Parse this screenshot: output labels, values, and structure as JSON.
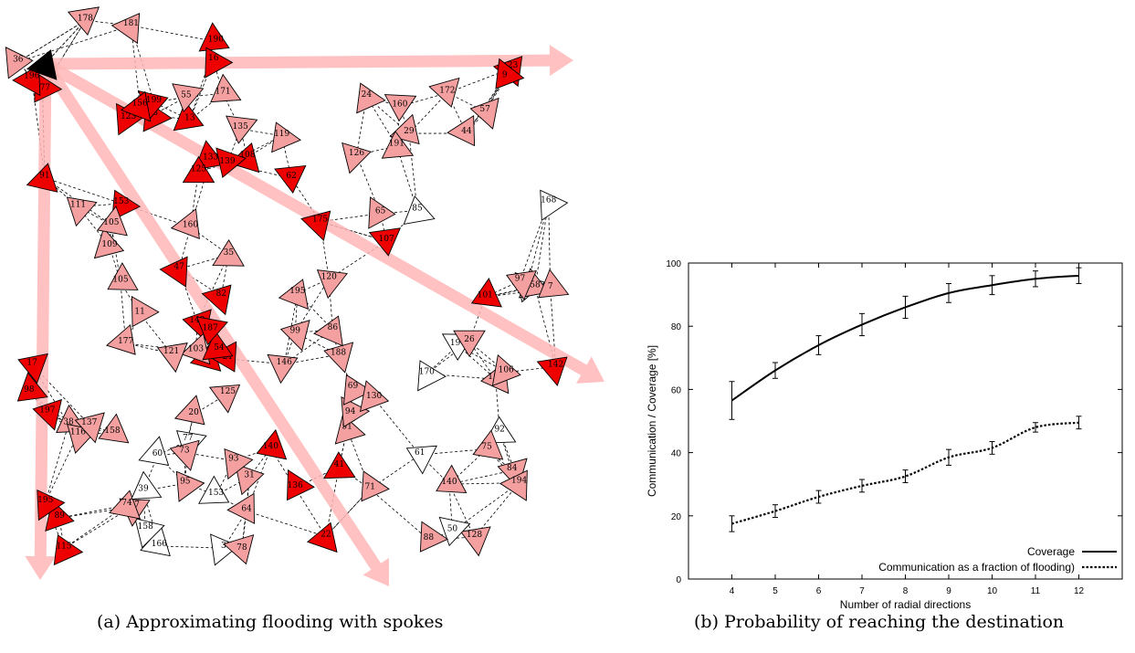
{
  "captions": {
    "a": "(a) Approximating flooding with spokes",
    "b": "(b) Probability of reaching the destination"
  },
  "colors": {
    "spoke": "#ffb6b6",
    "reached": "#ee0000",
    "visited": "#f4a0a0",
    "unreached": "#ffffff",
    "source": "#000000"
  },
  "network": {
    "node_labels": [
      "131",
      "175",
      "188",
      "166",
      "35",
      "47",
      "172",
      "184",
      "135",
      "177",
      "146",
      "24",
      "58",
      "84",
      "128",
      "77",
      "44",
      "38",
      "108",
      "23",
      "85",
      "143",
      "21",
      "171",
      "116",
      "64",
      "51",
      "94",
      "95",
      "36",
      "31",
      "89",
      "60",
      "190",
      "9",
      "41",
      "115",
      "120",
      "91",
      "29",
      "22",
      "7",
      "50",
      "177",
      "103",
      "158",
      "168",
      "133",
      "153",
      "117",
      "126",
      "111",
      "69",
      "92",
      "119",
      "13",
      "62",
      "123",
      "130",
      "187",
      "140",
      "170",
      "55",
      "160",
      "93",
      "3",
      "83",
      "78",
      "101",
      "106",
      "98",
      "73",
      "105",
      "74",
      "125",
      "136",
      "20",
      "86",
      "75",
      "54",
      "65",
      "97",
      "197",
      "109",
      "99",
      "194",
      "57",
      "71",
      "178",
      "195",
      "140",
      "199",
      "11",
      "142",
      "187",
      "39",
      "195",
      "61",
      "137",
      "153",
      "156",
      "191",
      "190",
      "196",
      "88",
      "26",
      "125",
      "16",
      "121",
      "181",
      "158",
      "82",
      "139",
      "107",
      "105",
      "17",
      "160"
    ]
  },
  "chart_data": {
    "type": "line",
    "xlabel": "Number of radial directions",
    "ylabel": "Communication / Coverage [%]",
    "x": [
      4,
      5,
      6,
      7,
      8,
      9,
      10,
      11,
      12
    ],
    "xlim": [
      3,
      13
    ],
    "ylim": [
      0,
      100
    ],
    "xticks": [
      "4",
      "5",
      "6",
      "7",
      "8",
      "9",
      "10",
      "11",
      "12"
    ],
    "yticks": [
      "0",
      "20",
      "40",
      "60",
      "80",
      "100"
    ],
    "legend_position": "bottom-right",
    "series": [
      {
        "name": "Coverage",
        "style": "solid",
        "values": [
          56.5,
          66,
          74,
          80.5,
          86,
          90.5,
          93,
          95,
          96
        ],
        "err": [
          6,
          2.5,
          3,
          3.5,
          3.5,
          3,
          3,
          2.5,
          2.5
        ]
      },
      {
        "name": "Communication as a fraction of flooding)",
        "style": "dotted",
        "values": [
          17.5,
          21.5,
          26,
          29.5,
          32.5,
          38.5,
          41.5,
          48,
          49.5
        ],
        "err": [
          2.5,
          2,
          2,
          2,
          2,
          2.5,
          2,
          1.5,
          2
        ]
      }
    ]
  }
}
